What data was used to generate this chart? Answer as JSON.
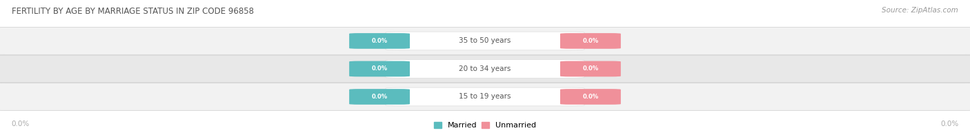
{
  "title": "FERTILITY BY AGE BY MARRIAGE STATUS IN ZIP CODE 96858",
  "source": "Source: ZipAtlas.com",
  "categories": [
    "15 to 19 years",
    "20 to 34 years",
    "35 to 50 years"
  ],
  "married_values": [
    0.0,
    0.0,
    0.0
  ],
  "unmarried_values": [
    0.0,
    0.0,
    0.0
  ],
  "married_color": "#5bbcbe",
  "unmarried_color": "#f0909a",
  "row_bg_color_light": "#f2f2f2",
  "row_bg_color_dark": "#e8e8e8",
  "row_bar_color": "#e0e0e0",
  "title_color": "#555555",
  "source_color": "#999999",
  "value_text_color": "#ffffff",
  "category_text_color": "#555555",
  "tick_color": "#aaaaaa",
  "figsize": [
    14.06,
    1.96
  ],
  "dpi": 100,
  "left_tick_label": "0.0%",
  "right_tick_label": "0.0%",
  "xlim": [
    -1.0,
    1.0
  ],
  "n_rows": 3,
  "legend_married": "Married",
  "legend_unmarried": "Unmarried"
}
